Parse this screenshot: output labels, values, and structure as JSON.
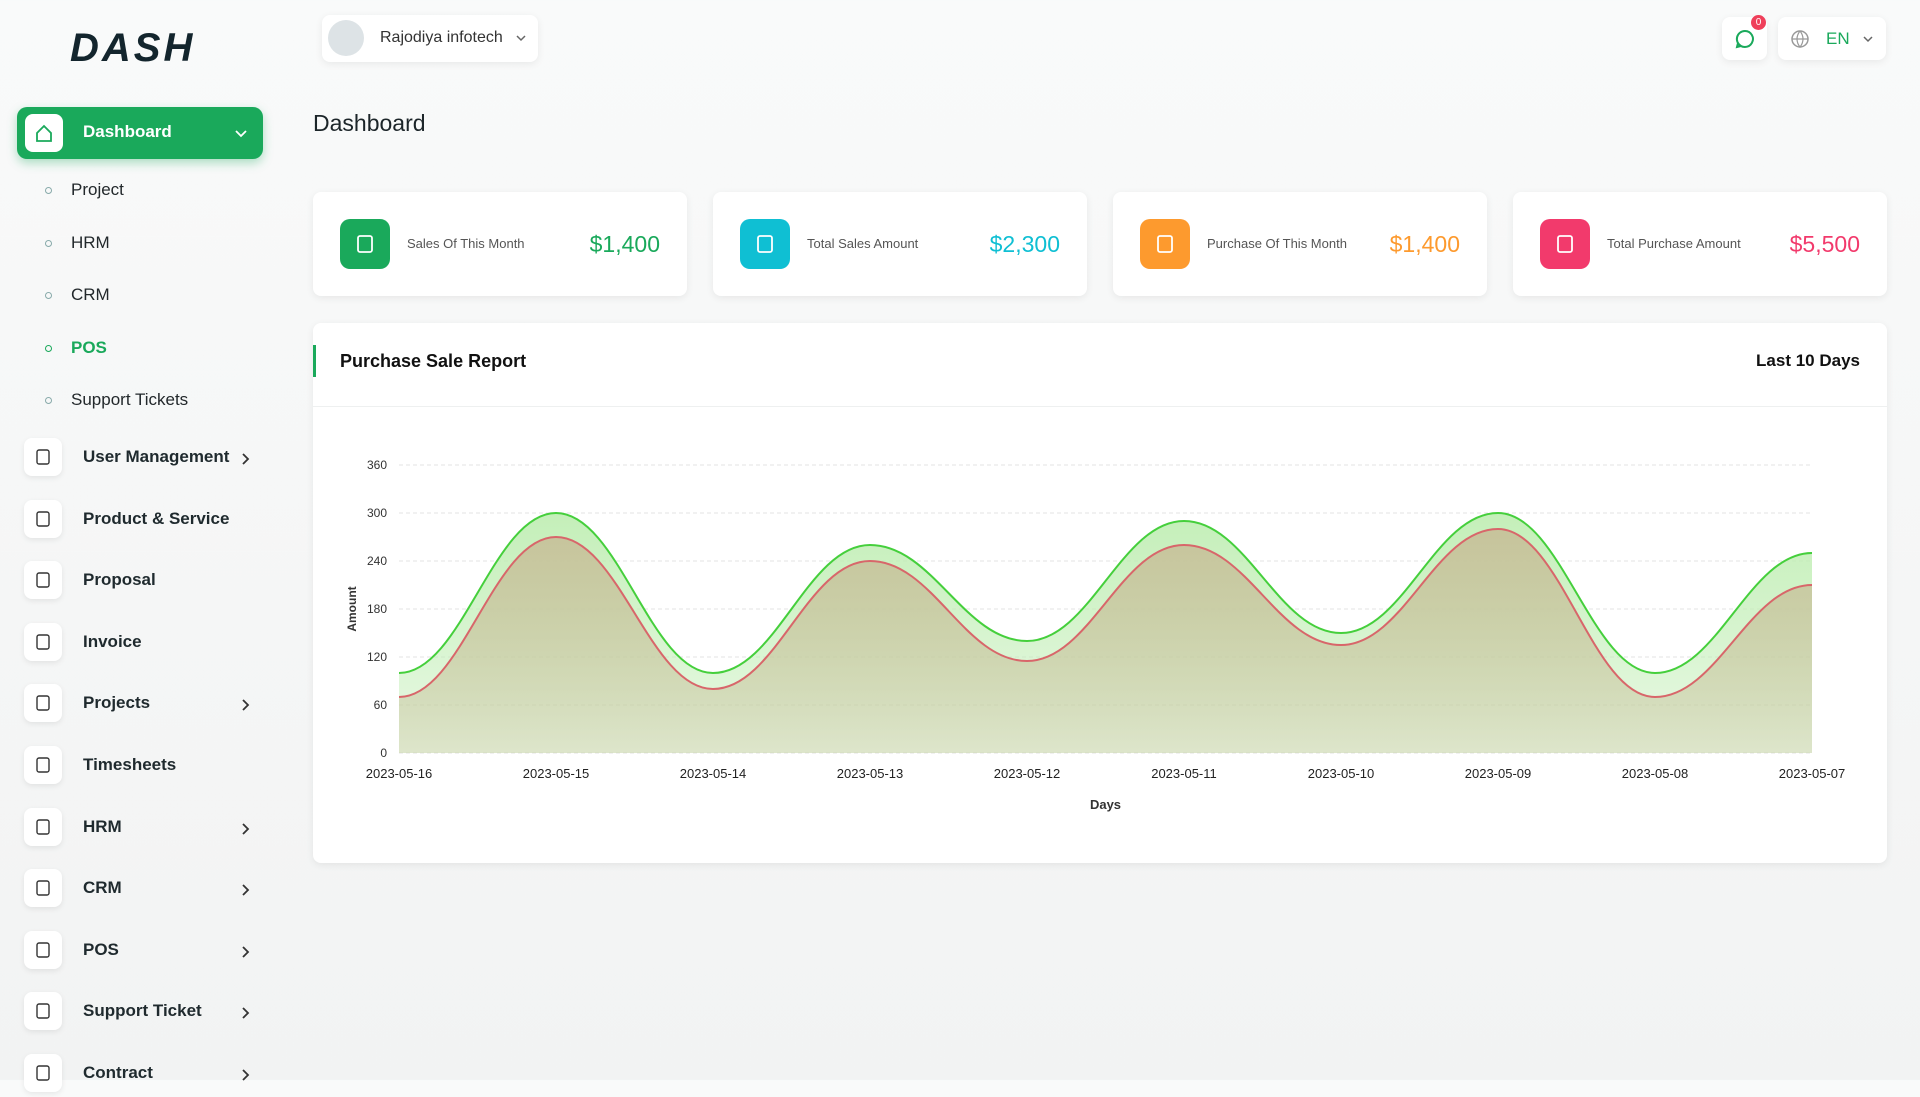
{
  "logo": "DASH",
  "header": {
    "company": "Rajodiya infotech",
    "notifications": "0",
    "language": "EN"
  },
  "sidebar": {
    "active": "Dashboard",
    "submenu": [
      {
        "label": "Project"
      },
      {
        "label": "HRM"
      },
      {
        "label": "CRM"
      },
      {
        "label": "POS",
        "active": true
      },
      {
        "label": "Support Tickets"
      }
    ],
    "menu": [
      {
        "label": "User Management",
        "expandable": true
      },
      {
        "label": "Product & Service",
        "expandable": false
      },
      {
        "label": "Proposal",
        "expandable": false
      },
      {
        "label": "Invoice",
        "expandable": false
      },
      {
        "label": "Projects",
        "expandable": true
      },
      {
        "label": "Timesheets",
        "expandable": false
      },
      {
        "label": "HRM",
        "expandable": true
      },
      {
        "label": "CRM",
        "expandable": true
      },
      {
        "label": "POS",
        "expandable": true
      },
      {
        "label": "Support Ticket",
        "expandable": true
      },
      {
        "label": "Contract",
        "expandable": true
      }
    ]
  },
  "page_title": "Dashboard",
  "cards": [
    {
      "label": "Sales Of This Month",
      "value": "$1,400",
      "color": "#1aa95b"
    },
    {
      "label": "Total Sales Amount",
      "value": "$2,300",
      "color": "#0fbfd3"
    },
    {
      "label": "Purchase Of This Month",
      "value": "$1,400",
      "color": "#fd9a2e"
    },
    {
      "label": "Total Purchase Amount",
      "value": "$5,500",
      "color": "#f23a6c"
    }
  ],
  "chart_card": {
    "title": "Purchase Sale Report",
    "period": "Last 10 Days"
  },
  "chart_data": {
    "type": "area",
    "x_label": "Days",
    "y_label": "Amount",
    "categories": [
      "2023-05-16",
      "2023-05-15",
      "2023-05-14",
      "2023-05-13",
      "2023-05-12",
      "2023-05-11",
      "2023-05-10",
      "2023-05-09",
      "2023-05-08",
      "2023-05-07"
    ],
    "series": [
      {
        "color": "#45cf3c",
        "fill": "#c1eeb5",
        "values": [
          100,
          300,
          100,
          260,
          140,
          290,
          150,
          300,
          100,
          250
        ]
      },
      {
        "color": "#d8666a",
        "fill": "#c7c19a",
        "values": [
          70,
          270,
          80,
          240,
          115,
          260,
          135,
          280,
          70,
          210
        ]
      }
    ],
    "ylim": [
      0,
      360
    ],
    "yticks": [
      0,
      60,
      120,
      180,
      240,
      300,
      360
    ],
    "grid": true
  }
}
